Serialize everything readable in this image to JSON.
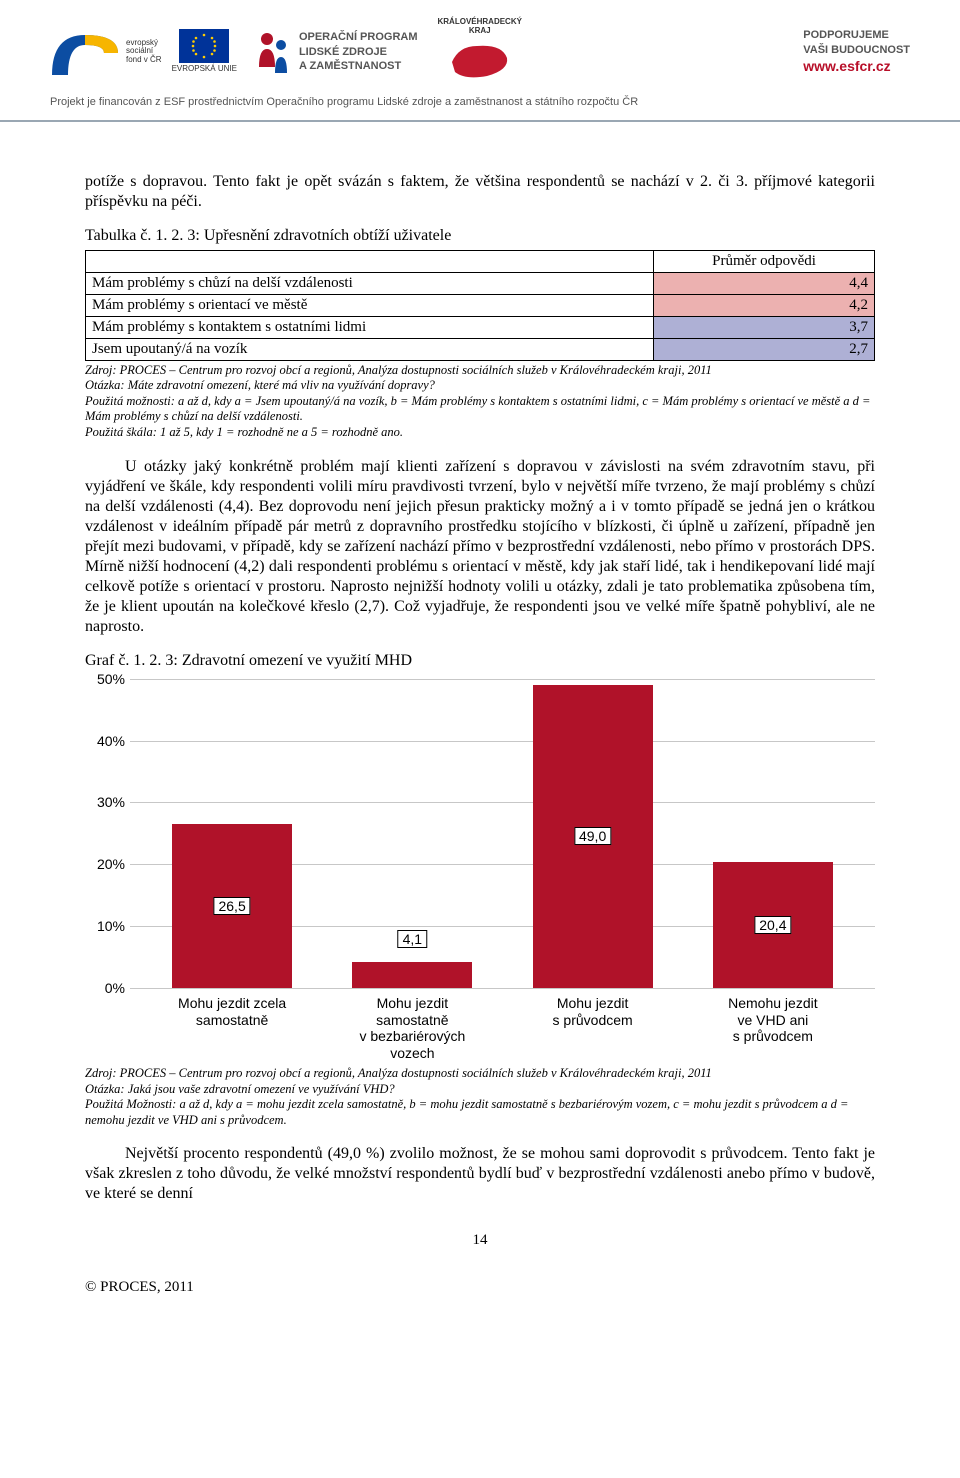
{
  "header": {
    "esf_lines": [
      "evropský",
      "sociální",
      "fond v ČR"
    ],
    "eu_label": "EVROPSKÁ UNIE",
    "op_lines": [
      "OPERAČNÍ PROGRAM",
      "LIDSKÉ ZDROJE",
      "A ZAMĚSTNANOST"
    ],
    "region_label": "KRÁLOVÉHRADECKÝ",
    "region_sub": "KRAJ",
    "support_lines": [
      "PODPORUJEME",
      "VAŠI BUDOUCNOST"
    ],
    "support_url": "www.esfcr.cz",
    "note": "Projekt je financován z ESF prostřednictvím Operačního programu Lidské zdroje a zaměstnanost a státního rozpočtu ČR"
  },
  "intro_para": "potíže s dopravou. Tento fakt je opět svázán s faktem, že většina respondentů se nachází v 2. či 3. příjmové kategorii příspěvku na péči.",
  "table": {
    "title": "Tabulka č. 1. 2. 3: Upřesnění zdravotních obtíží uživatele",
    "header_right": "Průměr odpovědi",
    "rows": [
      {
        "label": "Mám problémy s chůzí na delší vzdálenosti",
        "value": "4,4",
        "color": "#ecb1b0"
      },
      {
        "label": "Mám problémy s orientací ve městě",
        "value": "4,2",
        "color": "#ecb1b0"
      },
      {
        "label": "Mám problémy s kontaktem s ostatními lidmi",
        "value": "3,7",
        "color": "#aeb0d5"
      },
      {
        "label": "Jsem upoutaný/á na vozík",
        "value": "2,7",
        "color": "#aeb0d5"
      }
    ],
    "source": [
      "Zdroj: PROCES – Centrum pro rozvoj obcí a regionů, Analýza dostupnosti sociálních služeb v Královéhradeckém kraji, 2011",
      "Otázka: Máte zdravotní omezení, které má vliv na využívání dopravy?",
      "Použitá možnosti: a až d, kdy a = Jsem upoutaný/á na vozík, b = Mám problémy s kontaktem s ostatními lidmi, c = Mám problémy s orientací ve městě a d = Mám problémy s chůzí na delší vzdálenosti.",
      "Použitá škála: 1 až 5, kdy 1 = rozhodně ne a 5 = rozhodně ano."
    ]
  },
  "main_para": "U otázky jaký konkrétně problém mají klienti zařízení s dopravou v závislosti na svém zdravotním stavu, při vyjádření ve škále, kdy respondenti volili míru pravdivosti tvrzení, bylo v největší míře tvrzeno, že mají problémy s chůzí na delší vzdálenosti (4,4). Bez doprovodu není jejich přesun prakticky možný a i v tomto případě se jedná jen o krátkou vzdálenost v ideálním případě pár metrů z dopravního prostředku stojícího v blízkosti, či úplně u zařízení, případně jen přejít mezi budovami, v případě, kdy se zařízení nachází přímo v bezprostřední vzdálenosti, nebo přímo v prostorách DPS. Mírně nižší hodnocení (4,2) dali respondenti problému s orientací v městě, kdy jak staří lidé, tak i hendikepovaní lidé mají celkově potíže s orientací v prostoru. Naprosto nejnižší hodnoty volili u otázky, zdali je tato problematika způsobena tím, že je klient upoután na kolečkové křeslo (2,7). Což vyjadřuje, že respondenti jsou ve velké míře špatně pohybliví, ale ne naprosto.",
  "chart": {
    "title": "Graf č. 1. 2. 3: Zdravotní omezení ve využití MHD",
    "ylim_max": 50,
    "ytick_step": 10,
    "bar_color": "#b01229",
    "bg": "#ffffff",
    "grid_color": "#c7c7c7",
    "bars": [
      {
        "label": "Mohu jezdit zcela\nsamostatně",
        "value": 26.5,
        "value_text": "26,5"
      },
      {
        "label": "Mohu jezdit\nsamostatně\nv bezbariérových\nvozech",
        "value": 4.1,
        "value_text": "4,1"
      },
      {
        "label": "Mohu jezdit\ns průvodcem",
        "value": 49.0,
        "value_text": "49,0"
      },
      {
        "label": "Nemohu jezdit\nve VHD ani\ns průvodcem",
        "value": 20.4,
        "value_text": "20,4"
      }
    ],
    "source": [
      "Zdroj: PROCES – Centrum pro rozvoj obcí a regionů, Analýza dostupnosti sociálních služeb v Královéhradeckém kraji, 2011",
      "Otázka: Jaká jsou vaše zdravotní omezení ve využívání VHD?",
      "Použitá Možnosti: a až d, kdy a = mohu jezdit zcela samostatně, b = mohu jezdit samostatně s bezbariérovým vozem, c = mohu jezdit s průvodcem a d = nemohu jezdit ve VHD ani s průvodcem."
    ]
  },
  "closing_para": "Největší procento respondentů (49,0 %) zvolilo možnost, že se mohou sami doprovodit s průvodcem. Tento fakt je však zkreslen z toho důvodu, že velké množství respondentů bydlí buď v bezprostřední vzdálenosti anebo přímo v budově, ve které se denní",
  "page_number": "14",
  "footer": "© PROCES, 2011"
}
